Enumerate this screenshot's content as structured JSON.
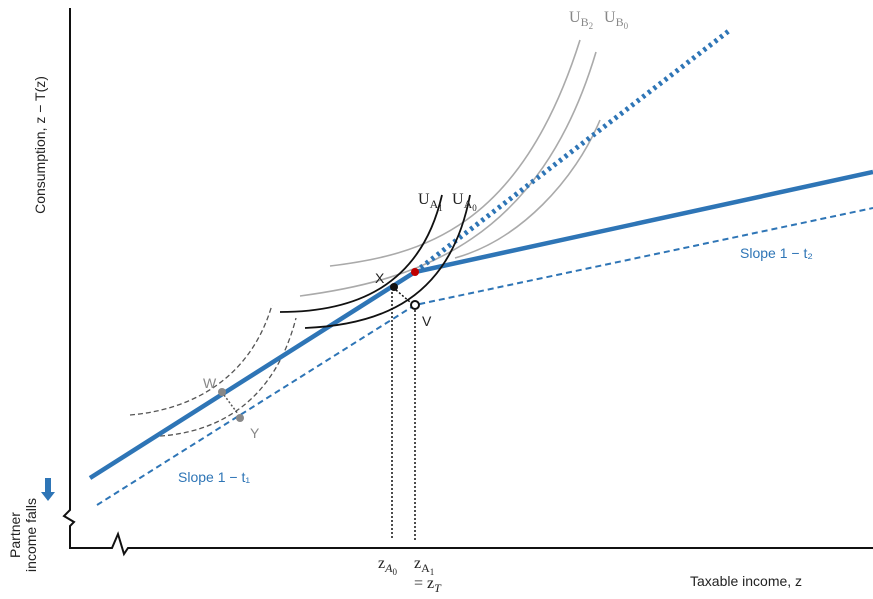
{
  "axes": {
    "y_label": "Consumption, z − T(z)",
    "x_label": "Taxable income, z"
  },
  "curves": {
    "u_b2": {
      "main": "U",
      "sub": "B",
      "subsub": "2"
    },
    "u_b0": {
      "main": "U",
      "sub": "B",
      "subsub": "0"
    },
    "u_a1": {
      "main": "U",
      "sub": "A",
      "subsub": "1"
    },
    "u_a0": {
      "main": "U",
      "sub": "A",
      "subsub": "0"
    }
  },
  "points": {
    "x": "X",
    "v": "V",
    "w": "W",
    "y": "Y"
  },
  "slopes": {
    "upper": "Slope 1 − t₂",
    "lower": "Slope 1 − t₁"
  },
  "partner": {
    "line1": "Partner",
    "line2": "income falls"
  },
  "z_labels": {
    "za0": {
      "main": "z",
      "sub": "A",
      "subsub": "0"
    },
    "za1": {
      "main": "z",
      "sub": "A",
      "subsub": "1"
    },
    "zt": {
      "eq": "= z",
      "sub": "T"
    }
  }
}
